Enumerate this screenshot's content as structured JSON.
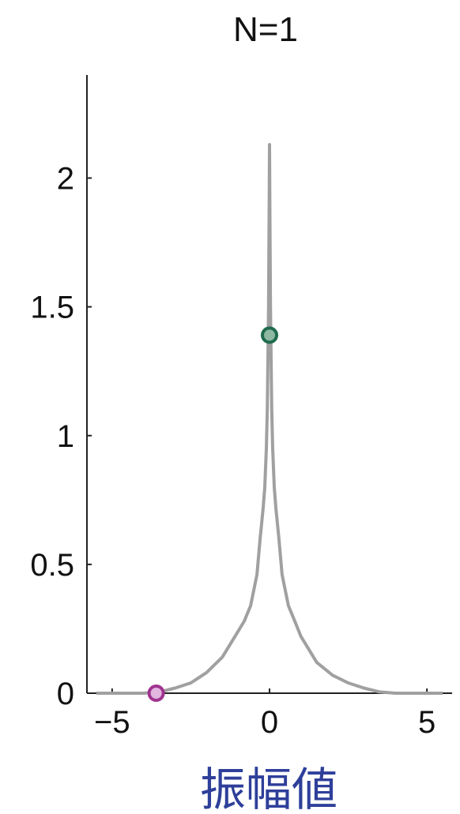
{
  "chart_data": {
    "type": "line",
    "title": "N=1",
    "xlabel": "振幅値",
    "ylabel": "",
    "xlim": [
      -5.8,
      5.8
    ],
    "ylim": [
      0,
      2.4
    ],
    "xticks": [
      -5,
      0,
      5
    ],
    "yticks": [
      0,
      0.5,
      1,
      1.5,
      2
    ],
    "xtick_labels": [
      "−5",
      "0",
      "5"
    ],
    "ytick_labels": [
      "0",
      "0.5",
      "1",
      "1.5",
      "2"
    ],
    "grid": false,
    "series": [
      {
        "color": "#a0a0a0",
        "x": [
          -5.5,
          -4.5,
          -4.0,
          -3.5,
          -3.0,
          -2.5,
          -2.0,
          -1.5,
          -1.2,
          -1.0,
          -0.8,
          -0.6,
          -0.5,
          -0.4,
          -0.3,
          -0.2,
          -0.15,
          -0.1,
          -0.07,
          -0.05,
          -0.03,
          -0.02,
          -0.01,
          0.0,
          0.01,
          0.02,
          0.03,
          0.05,
          0.07,
          0.1,
          0.15,
          0.2,
          0.3,
          0.4,
          0.5,
          0.6,
          0.8,
          1.0,
          1.2,
          1.5,
          2.0,
          2.5,
          3.0,
          3.5,
          4.0,
          4.5,
          5.5
        ],
        "y": [
          0.0,
          0.0,
          0.0,
          0.005,
          0.02,
          0.04,
          0.08,
          0.14,
          0.2,
          0.24,
          0.28,
          0.34,
          0.4,
          0.46,
          0.6,
          0.72,
          0.8,
          0.95,
          1.1,
          1.3,
          1.5,
          1.7,
          1.9,
          2.13,
          1.9,
          1.7,
          1.5,
          1.3,
          1.1,
          0.95,
          0.8,
          0.72,
          0.6,
          0.46,
          0.4,
          0.34,
          0.28,
          0.22,
          0.18,
          0.12,
          0.07,
          0.04,
          0.02,
          0.005,
          0.0,
          0.0,
          0.0
        ]
      }
    ],
    "markers": [
      {
        "x": 0.0,
        "y": 1.39,
        "edge_color": "#1f6b4d",
        "face_color": "#8fb8a2"
      },
      {
        "x": -3.6,
        "y": 0.0,
        "edge_color": "#a0338f",
        "face_color": "#e2b6df"
      }
    ]
  }
}
